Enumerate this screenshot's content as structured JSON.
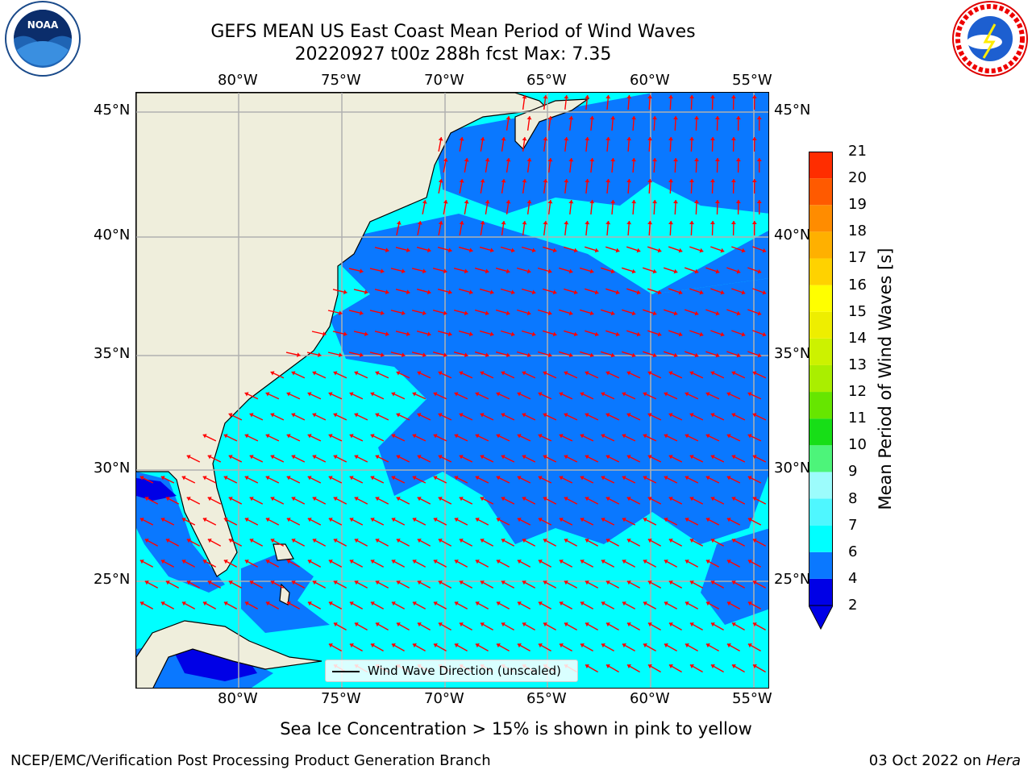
{
  "title_line1": "GEFS MEAN US East Coast Mean Period of Wind Waves",
  "title_line2": "20220927 t00z 288h fcst   Max: 7.35",
  "lon_ticks": [
    "80°W",
    "75°W",
    "70°W",
    "65°W",
    "60°W",
    "55°W"
  ],
  "lat_ticks": [
    "45°N",
    "40°N",
    "35°N",
    "30°N",
    "25°N"
  ],
  "colorbar": {
    "label": "Mean Period of Wind Waves [s]",
    "ticks": [
      "2",
      "4",
      "6",
      "7",
      "8",
      "9",
      "10",
      "11",
      "12",
      "13",
      "14",
      "15",
      "16",
      "17",
      "18",
      "19",
      "20",
      "21"
    ],
    "colors": [
      "#0000e6",
      "#0a78ff",
      "#00ffff",
      "#4ff7ff",
      "#9cfcfc",
      "#4df47a",
      "#17de17",
      "#66e600",
      "#aaee00",
      "#ccf200",
      "#eeee00",
      "#ffff00",
      "#ffd200",
      "#ffb000",
      "#ff8c00",
      "#ff5a00",
      "#ff2d00",
      "#ff0000"
    ]
  },
  "legend_text": "Wind Wave Direction (unscaled)",
  "sea_ice_note": "Sea Ice Concentration > 15% is shown in pink to yellow",
  "credit": "NCEP/EMC/Verification Post Processing Product Generation Branch",
  "date": "03 Oct 2022 on",
  "machine": "Hera",
  "logos": {
    "left": "NOAA",
    "right": "NATIONAL WEATHER SERVICE"
  },
  "map_colors": {
    "land": "#efeedc",
    "sea_low": "#00ffff",
    "sea_mid": "#0a78ff",
    "sea_min": "#0000e6",
    "arrow": "#ff0000",
    "grid": "#b0b0b0"
  }
}
